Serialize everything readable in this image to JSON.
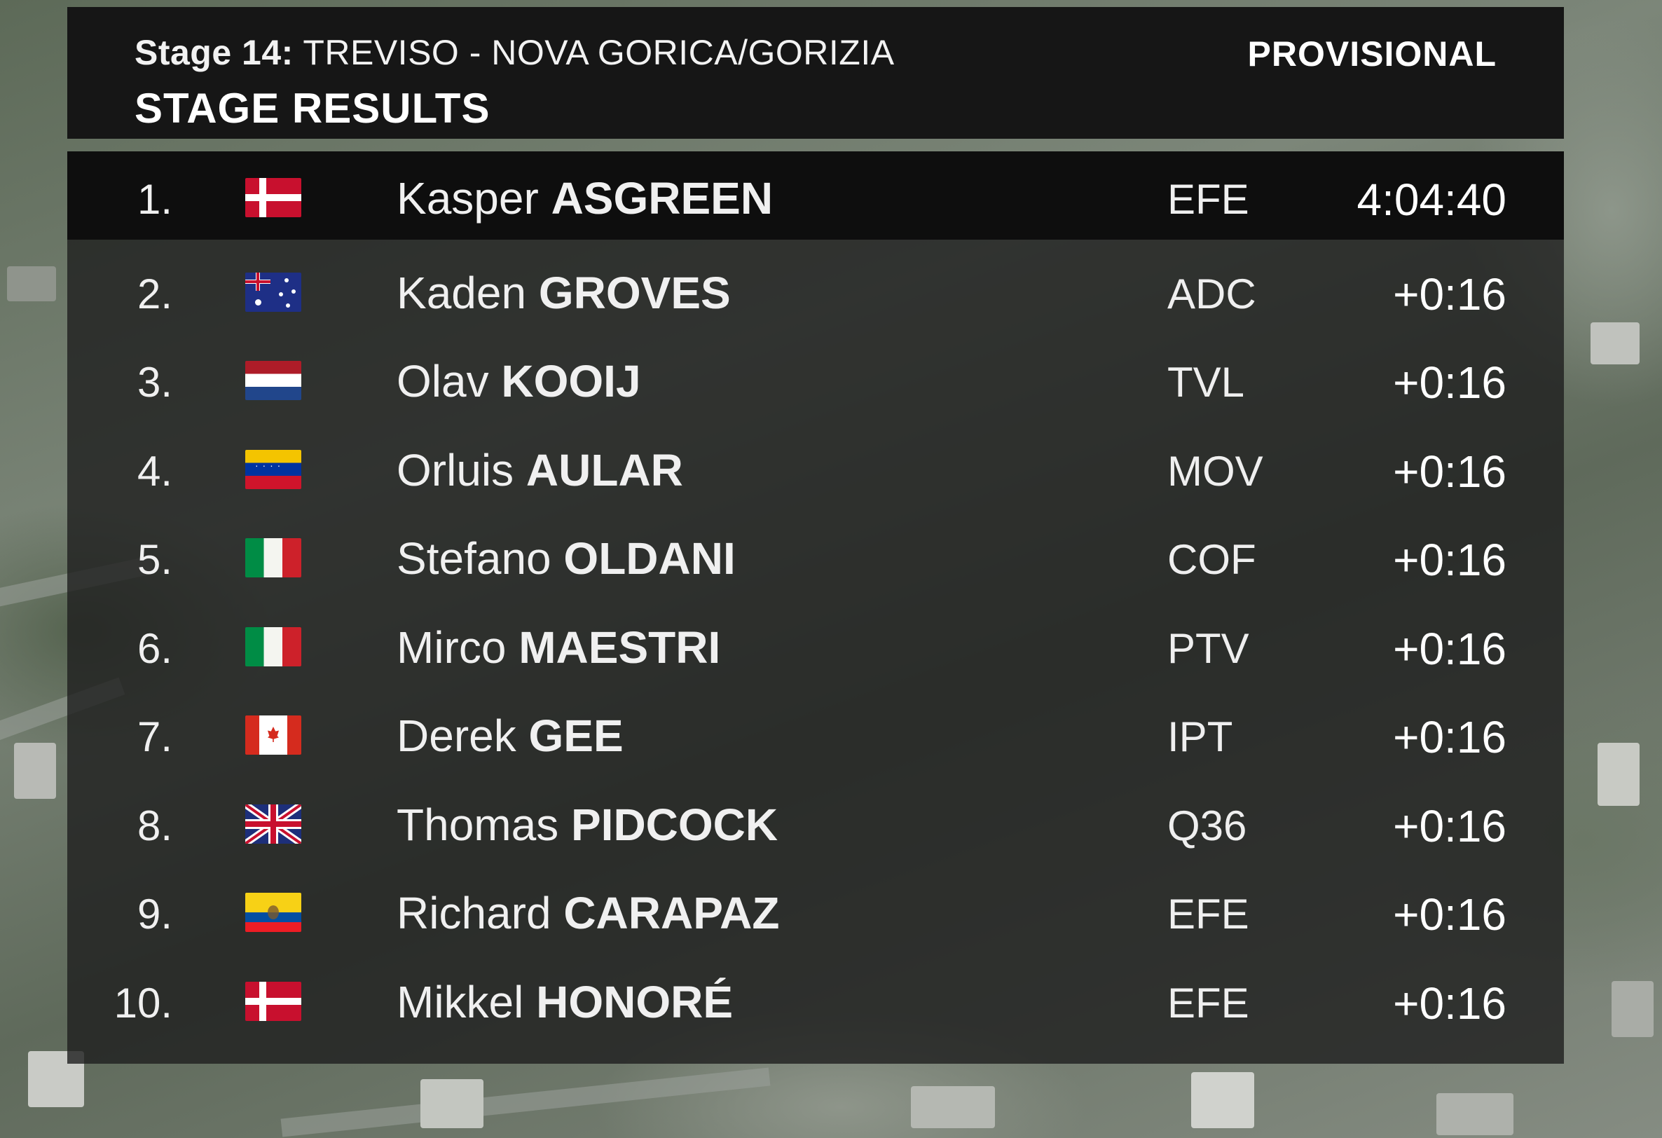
{
  "header": {
    "stage_label": "Stage 14:",
    "stage_route": "TREVISO - NOVA GORICA/GORIZIA",
    "title": "STAGE RESULTS",
    "status": "PROVISIONAL"
  },
  "results": [
    {
      "rank": "1.",
      "flag": "denmark-flag-icon",
      "first": "Kasper",
      "last": "ASGREEN",
      "team": "EFE",
      "time": "4:04:40"
    },
    {
      "rank": "2.",
      "flag": "australia-flag-icon",
      "first": "Kaden",
      "last": "GROVES",
      "team": "ADC",
      "time": "+0:16"
    },
    {
      "rank": "3.",
      "flag": "netherlands-flag-icon",
      "first": "Olav",
      "last": "KOOIJ",
      "team": "TVL",
      "time": "+0:16"
    },
    {
      "rank": "4.",
      "flag": "venezuela-flag-icon",
      "first": "Orluis",
      "last": "AULAR",
      "team": "MOV",
      "time": "+0:16"
    },
    {
      "rank": "5.",
      "flag": "italy-flag-icon",
      "first": "Stefano",
      "last": "OLDANI",
      "team": "COF",
      "time": "+0:16"
    },
    {
      "rank": "6.",
      "flag": "italy-flag-icon",
      "first": "Mirco",
      "last": "MAESTRI",
      "team": "PTV",
      "time": "+0:16"
    },
    {
      "rank": "7.",
      "flag": "canada-flag-icon",
      "first": "Derek",
      "last": "GEE",
      "team": "IPT",
      "time": "+0:16"
    },
    {
      "rank": "8.",
      "flag": "great-britain-flag-icon",
      "first": "Thomas",
      "last": "PIDCOCK",
      "team": "Q36",
      "time": "+0:16"
    },
    {
      "rank": "9.",
      "flag": "ecuador-flag-icon",
      "first": "Richard",
      "last": "CARAPAZ",
      "team": "EFE",
      "time": "+0:16"
    },
    {
      "rank": "10.",
      "flag": "denmark-flag-icon",
      "first": "Mikkel",
      "last": "HONORÉ",
      "team": "EFE",
      "time": "+0:16"
    }
  ],
  "colors": {
    "header_bg": "#161616",
    "leader_row_bg": "#0e0e0e",
    "table_bg": "#1e1e1e",
    "text": "#ffffff"
  }
}
